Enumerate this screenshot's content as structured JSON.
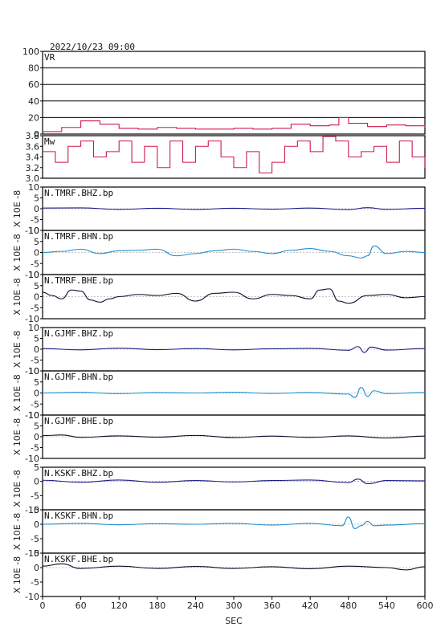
{
  "header": {
    "datetime": "2022/10/23 09:00"
  },
  "chart_data": {
    "type": "line",
    "xlabel": "SEC",
    "xlim": [
      0,
      600
    ],
    "xticks": [
      "0",
      "60",
      "120",
      "180",
      "240",
      "300",
      "360",
      "420",
      "480",
      "540",
      "600"
    ],
    "ylabel_waveform": "X 10E -8",
    "panels": [
      {
        "name": "VR",
        "color": "#d01848",
        "ylim": [
          0,
          100
        ],
        "yticks": [
          "0",
          "20",
          "40",
          "60",
          "80",
          "100"
        ],
        "grid": true,
        "series_x": [
          0,
          30,
          60,
          90,
          120,
          150,
          180,
          210,
          240,
          270,
          300,
          330,
          360,
          390,
          420,
          450,
          465,
          480,
          510,
          540,
          570,
          600
        ],
        "series_y": [
          3,
          8,
          16,
          12,
          7,
          6,
          8,
          7,
          6,
          6,
          7,
          6,
          7,
          12,
          10,
          11,
          20,
          13,
          9,
          11,
          10,
          8
        ]
      },
      {
        "name": "Mw",
        "color": "#d01848",
        "ylim": [
          3.0,
          3.8
        ],
        "yticks": [
          "3.0",
          "3.2",
          "3.4",
          "3.6",
          "3.8"
        ],
        "grid": false,
        "series_x": [
          0,
          20,
          40,
          60,
          80,
          100,
          120,
          140,
          160,
          180,
          200,
          220,
          240,
          260,
          280,
          300,
          320,
          340,
          360,
          380,
          400,
          420,
          440,
          460,
          480,
          500,
          520,
          540,
          560,
          580,
          600
        ],
        "series_y": [
          3.5,
          3.3,
          3.6,
          3.7,
          3.4,
          3.5,
          3.7,
          3.3,
          3.6,
          3.2,
          3.7,
          3.3,
          3.6,
          3.7,
          3.4,
          3.2,
          3.5,
          3.1,
          3.3,
          3.6,
          3.7,
          3.5,
          3.8,
          3.7,
          3.4,
          3.5,
          3.6,
          3.3,
          3.7,
          3.4,
          3.2
        ]
      },
      {
        "name": "N.TMRF.BHZ.bp",
        "color": "#1c1c8a",
        "ylim": [
          -10,
          10
        ],
        "yticks": [
          "-10",
          "-5",
          "0",
          "5",
          "10"
        ],
        "series_x": [
          0,
          60,
          120,
          180,
          240,
          300,
          360,
          420,
          480,
          510,
          540,
          600
        ],
        "series_y": [
          0.3,
          0.4,
          -0.3,
          0.2,
          -0.3,
          0.2,
          -0.2,
          0.3,
          -0.4,
          0.5,
          -0.3,
          0.2
        ]
      },
      {
        "name": "N.TMRF.BHN.bp",
        "color": "#1e8ed0",
        "ylim": [
          -10,
          10
        ],
        "yticks": [
          "-10",
          "-5",
          "0",
          "5",
          "10"
        ],
        "series_x": [
          0,
          30,
          60,
          90,
          120,
          150,
          180,
          210,
          240,
          270,
          300,
          330,
          360,
          390,
          420,
          450,
          480,
          500,
          510,
          520,
          540,
          570,
          600
        ],
        "series_y": [
          0,
          0.5,
          1.5,
          -0.5,
          0.8,
          1,
          1.5,
          -1.5,
          -0.5,
          0.8,
          1.5,
          0.5,
          -0.5,
          1,
          1.8,
          0.5,
          -1.5,
          -2.5,
          -1.5,
          3,
          -0.5,
          0.5,
          0
        ]
      },
      {
        "name": "N.TMRF.BHE.bp",
        "color": "#0a0a28",
        "ylim": [
          -10,
          10
        ],
        "yticks": [
          "-10",
          "-5",
          "0",
          "5",
          "10"
        ],
        "series_x": [
          0,
          15,
          30,
          45,
          60,
          75,
          90,
          105,
          120,
          150,
          180,
          210,
          240,
          270,
          300,
          330,
          360,
          390,
          420,
          435,
          450,
          465,
          480,
          510,
          540,
          570,
          600
        ],
        "series_y": [
          2,
          0.5,
          -1,
          3,
          2.5,
          -1.5,
          -2.5,
          -1,
          0,
          1,
          0.5,
          1.5,
          -2,
          1.5,
          2,
          -1,
          1,
          0.5,
          -1,
          3,
          3.5,
          -2,
          -3,
          0.5,
          1,
          -0.5,
          0
        ]
      },
      {
        "name": "N.GJMF.BHZ.bp",
        "color": "#1c1c8a",
        "ylim": [
          -10,
          10
        ],
        "yticks": [
          "-10",
          "-5",
          "0",
          "5",
          "10"
        ],
        "series_x": [
          0,
          60,
          120,
          180,
          240,
          300,
          360,
          420,
          480,
          495,
          505,
          515,
          540,
          600
        ],
        "series_y": [
          0.3,
          -0.3,
          0.5,
          -0.2,
          0.3,
          -0.3,
          0.2,
          0.4,
          -0.5,
          1.2,
          -1.5,
          1,
          -0.4,
          0.3
        ]
      },
      {
        "name": "N.GJMF.BHN.bp",
        "color": "#1e8ed0",
        "ylim": [
          -10,
          10
        ],
        "yticks": [
          "-10",
          "-5",
          "0",
          "5",
          "10"
        ],
        "series_x": [
          0,
          60,
          120,
          180,
          240,
          300,
          360,
          420,
          480,
          490,
          500,
          510,
          520,
          540,
          600
        ],
        "series_y": [
          0,
          0.3,
          -0.3,
          0.2,
          0,
          0.3,
          -0.2,
          0.2,
          -0.5,
          -2,
          2.5,
          -1.5,
          1,
          -0.3,
          0.2
        ]
      },
      {
        "name": "N.GJMF.BHE.bp",
        "color": "#0a0a28",
        "ylim": [
          -10,
          10
        ],
        "yticks": [
          "-10",
          "-5",
          "0",
          "5",
          "10"
        ],
        "series_x": [
          0,
          30,
          60,
          120,
          180,
          240,
          300,
          360,
          420,
          480,
          540,
          600
        ],
        "series_y": [
          0.5,
          0.8,
          -0.3,
          0.4,
          -0.2,
          0.6,
          -0.4,
          0.3,
          -0.3,
          0.4,
          -0.6,
          0.3
        ]
      },
      {
        "name": "N.KSKF.BHZ.bp",
        "color": "#1c1c8a",
        "ylim": [
          -10,
          5
        ],
        "yticks": [
          "-10",
          "-5",
          "0",
          "5"
        ],
        "series_x": [
          0,
          60,
          120,
          180,
          240,
          300,
          360,
          420,
          480,
          495,
          510,
          540,
          600
        ],
        "series_y": [
          0.4,
          -0.3,
          0.5,
          -0.3,
          0.3,
          -0.2,
          0.3,
          0.5,
          -0.4,
          0.8,
          -0.8,
          0.3,
          0.2
        ]
      },
      {
        "name": "N.KSKF.BHN.bp",
        "color": "#1e8ed0",
        "ylim": [
          -10,
          5
        ],
        "yticks": [
          "-10",
          "-5",
          "0",
          "5"
        ],
        "series_x": [
          0,
          60,
          120,
          180,
          240,
          300,
          360,
          420,
          470,
          480,
          490,
          500,
          510,
          520,
          540,
          600
        ],
        "series_y": [
          0,
          0.3,
          -0.2,
          0.2,
          0,
          0.3,
          -0.3,
          0.3,
          -0.5,
          2.5,
          -1.5,
          -0.5,
          1,
          -0.5,
          -0.3,
          0.2
        ]
      },
      {
        "name": "N.KSKF.BHE.bp",
        "color": "#0a0a28",
        "ylim": [
          -10,
          5
        ],
        "yticks": [
          "-10",
          "-5",
          "0",
          "5"
        ],
        "series_x": [
          0,
          30,
          60,
          120,
          180,
          240,
          300,
          360,
          420,
          480,
          540,
          570,
          600
        ],
        "series_y": [
          0.5,
          1.3,
          -0.3,
          0.5,
          -0.3,
          0.4,
          -0.3,
          0.3,
          -0.4,
          0.5,
          0,
          -0.8,
          0.3
        ]
      }
    ]
  }
}
